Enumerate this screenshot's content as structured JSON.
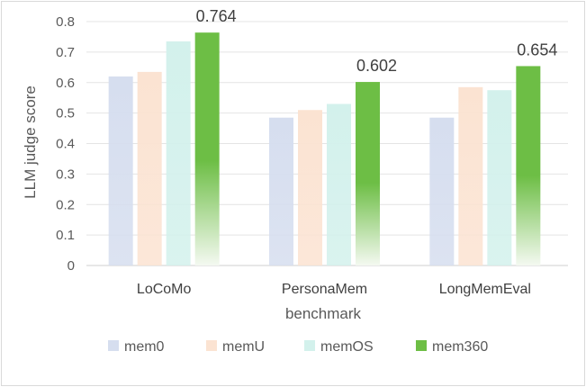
{
  "chart_data": {
    "type": "bar",
    "categories": [
      "LoCoMo",
      "PersonaMem",
      "LongMemEval"
    ],
    "series": [
      {
        "name": "mem0",
        "values": [
          0.62,
          0.485,
          0.485
        ],
        "color": "#d6deef"
      },
      {
        "name": "memU",
        "values": [
          0.635,
          0.51,
          0.585
        ],
        "color": "#fbe3d2"
      },
      {
        "name": "memOS",
        "values": [
          0.735,
          0.53,
          0.575
        ],
        "color": "#d3f1ec"
      },
      {
        "name": "mem360",
        "values": [
          0.764,
          0.602,
          0.654
        ],
        "color": "#6dbe45"
      }
    ],
    "data_labels": [
      {
        "series": "mem360",
        "category": "LoCoMo",
        "text": "0.764"
      },
      {
        "series": "mem360",
        "category": "PersonaMem",
        "text": "0.602"
      },
      {
        "series": "mem360",
        "category": "LongMemEval",
        "text": "0.654"
      }
    ],
    "xlabel": "benchmark",
    "ylabel": "LLM judge score",
    "ylim": [
      0,
      0.8
    ],
    "yticks": [
      "0",
      "0.1",
      "0.2",
      "0.3",
      "0.4",
      "0.5",
      "0.6",
      "0.7",
      "0.8"
    ],
    "grid": true,
    "legend_position": "bottom"
  }
}
